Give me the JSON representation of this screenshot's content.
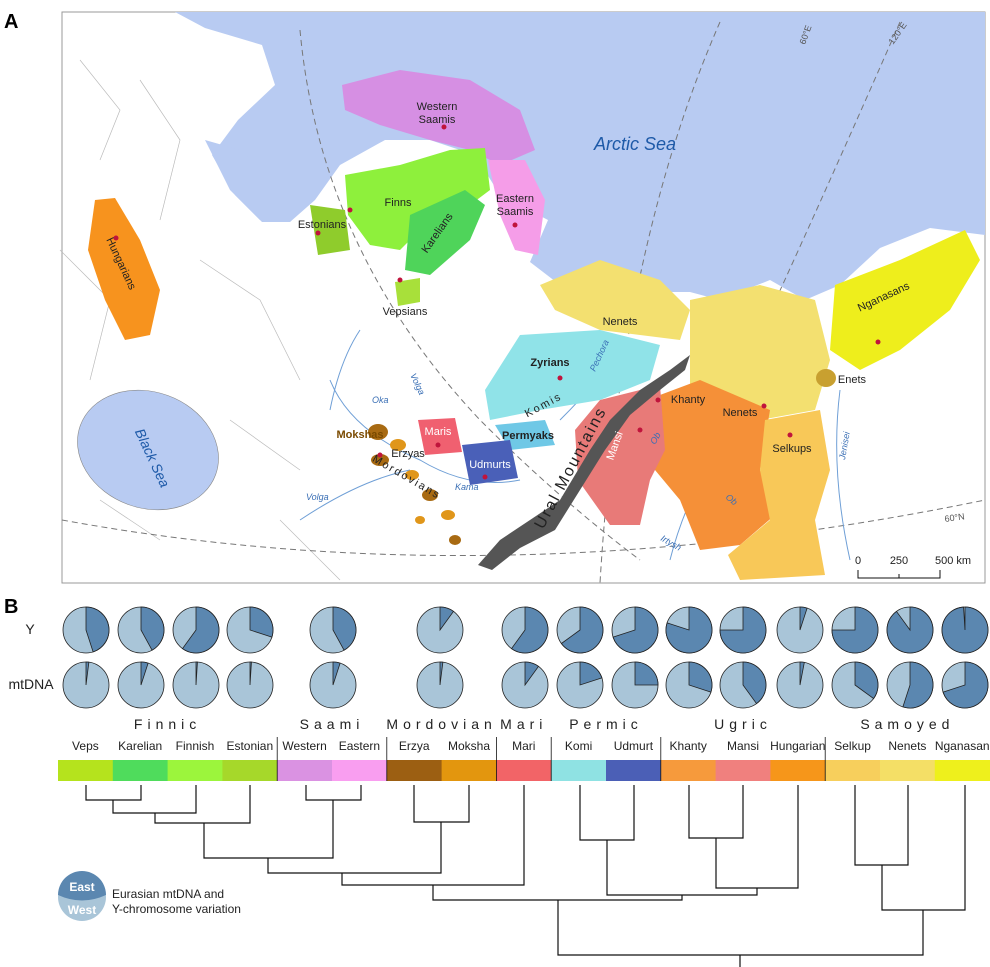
{
  "panel_a": {
    "label": "A",
    "seas": [
      "Arctic Sea",
      "Black Sea"
    ],
    "populations": [
      [
        "Western",
        "Saamis"
      ],
      [
        "Eastern",
        "Saamis"
      ],
      [
        "Finns"
      ],
      [
        "Estonians"
      ],
      [
        "Karelians"
      ],
      [
        "Hungarians"
      ],
      [
        "Vepsians"
      ],
      [
        "Nenets"
      ],
      [
        "Nganasans"
      ],
      [
        "Enets"
      ],
      [
        "Zyrians"
      ],
      [
        "Komis"
      ],
      [
        "Permyaks"
      ],
      [
        "Maris"
      ],
      [
        "Mokshas"
      ],
      [
        "Erzyas"
      ],
      [
        "Mordovians"
      ],
      [
        "Udmurts"
      ],
      [
        "Khanty"
      ],
      [
        "Mansi"
      ],
      [
        "Nenets"
      ],
      [
        "Selkups"
      ]
    ],
    "rivers": [
      "Pechora",
      "Volga",
      "Oka",
      "Kama",
      "Volga",
      "Ob",
      "Ob",
      "Irtysh",
      "Jenisei"
    ],
    "mountains": "Ural Mountains",
    "graticule": [
      "60°E",
      "120°E",
      "60°N"
    ],
    "scale_bar": [
      "0",
      "250",
      "500 km"
    ]
  },
  "panel_b": {
    "label": "B",
    "rows": [
      "Y",
      "mtDNA"
    ],
    "y_east": [
      45,
      42,
      60,
      30,
      42,
      10,
      60,
      65,
      70,
      80,
      75,
      5,
      75,
      90,
      99
    ],
    "mtdna_east": [
      2,
      5,
      1,
      1,
      5,
      2,
      10,
      20,
      25,
      30,
      40,
      3,
      35,
      55,
      70
    ],
    "groups": [
      {
        "name": "Finnic",
        "languages": [
          {
            "name": "Veps",
            "color": "#b5e31d"
          },
          {
            "name": "Karelian",
            "color": "#4fdc5c"
          },
          {
            "name": "Finnish",
            "color": "#9cf53c"
          },
          {
            "name": "Estonian",
            "color": "#a6d82a"
          }
        ]
      },
      {
        "name": "Saami",
        "languages": [
          {
            "name": "Western",
            "color": "#da92e2"
          },
          {
            "name": "Eastern",
            "color": "#f99ef0"
          }
        ]
      },
      {
        "name": "Mordovian",
        "languages": [
          {
            "name": "Erzya",
            "color": "#9c5f12"
          },
          {
            "name": "Moksha",
            "color": "#e3960e"
          }
        ]
      },
      {
        "name": "Mari",
        "languages": [
          {
            "name": "Mari",
            "color": "#f26467"
          }
        ]
      },
      {
        "name": "Permic",
        "languages": [
          {
            "name": "Komi",
            "color": "#8fe2e3"
          },
          {
            "name": "Udmurt",
            "color": "#4b5fb6"
          }
        ]
      },
      {
        "name": "Ugric",
        "languages": [
          {
            "name": "Khanty",
            "color": "#f69a3c"
          },
          {
            "name": "Mansi",
            "color": "#f0807e"
          },
          {
            "name": "Hungarian",
            "color": "#f6961a"
          }
        ]
      },
      {
        "name": "Samoyed",
        "languages": [
          {
            "name": "Selkup",
            "color": "#f7cf5c"
          },
          {
            "name": "Nenets",
            "color": "#f4df66"
          },
          {
            "name": "Nganasan",
            "color": "#eef01c"
          }
        ]
      }
    ],
    "legend": {
      "east": "East",
      "west": "West",
      "caption": [
        "Eurasian mtDNA and",
        "Y-chromosome variation"
      ]
    }
  }
}
